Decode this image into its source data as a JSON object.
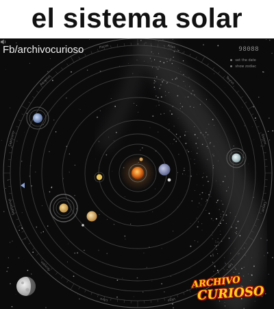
{
  "header": {
    "title": "el sistema solar"
  },
  "overlay": {
    "credit": "Fb/archivocurioso"
  },
  "hud": {
    "counter": "98088",
    "menu": [
      "set the date",
      "show zodiac"
    ]
  },
  "logo": {
    "line1": "ARCHIVO",
    "line2": "CURIOSO"
  },
  "zodiac_labels": [
    "Aries",
    "Taurus",
    "Gemini",
    "Cancer",
    "Leo",
    "Virgo",
    "Libra",
    "Scorpio",
    "Sagittarius",
    "Capricorn",
    "Aquarius",
    "Pisces"
  ],
  "colors": {
    "space": "#0b0b0c",
    "orbit": "#3c3c3c",
    "sun": "#e0731e",
    "milky_way": "#9a9a9a",
    "logo_yellow": "#ffcc1a",
    "logo_red": "#b3140a"
  },
  "icons": {
    "speaker": "speaker-icon",
    "moon_phase": "moon-phase-icon",
    "sun": "sun-icon"
  }
}
